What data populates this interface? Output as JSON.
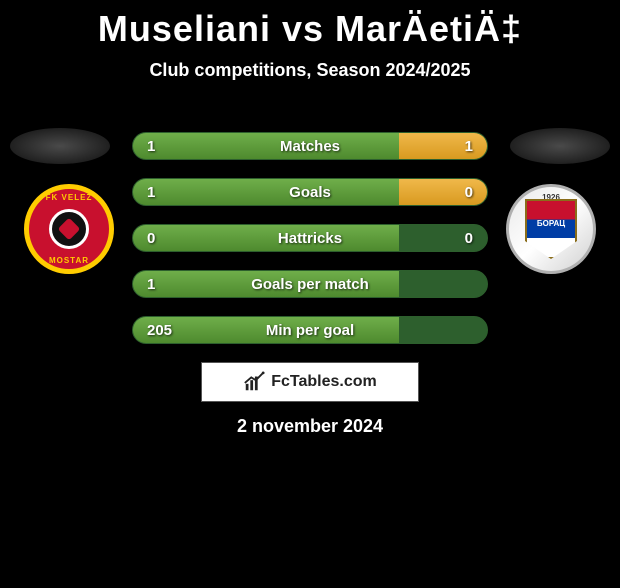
{
  "title": "Museliani vs MarÄetiÄ‡",
  "subtitle": "Club competitions, Season 2024/2025",
  "date": "2 november 2024",
  "site_logo_text": "FcTables.com",
  "colors": {
    "background": "#000000",
    "left_fill": "#4e8a2e",
    "right_fill": "#d89a20",
    "bar_bg": "#2d5f2d",
    "text": "#ffffff"
  },
  "badges": {
    "left": {
      "name": "velez-badge",
      "top_text": "FK VELEZ",
      "bottom_text": "MOSTAR"
    },
    "right": {
      "name": "borac-badge",
      "year": "1926",
      "shield_text": "БОРАЦ"
    }
  },
  "bars": [
    {
      "label": "Matches",
      "left_val": "1",
      "right_val": "1",
      "left_pct": 75,
      "right_pct": 25
    },
    {
      "label": "Goals",
      "left_val": "1",
      "right_val": "0",
      "left_pct": 75,
      "right_pct": 25
    },
    {
      "label": "Hattricks",
      "left_val": "0",
      "right_val": "0",
      "left_pct": 75,
      "right_pct": 0
    },
    {
      "label": "Goals per match",
      "left_val": "1",
      "right_val": "",
      "left_pct": 75,
      "right_pct": 0
    },
    {
      "label": "Min per goal",
      "left_val": "205",
      "right_val": "",
      "left_pct": 75,
      "right_pct": 0
    }
  ]
}
